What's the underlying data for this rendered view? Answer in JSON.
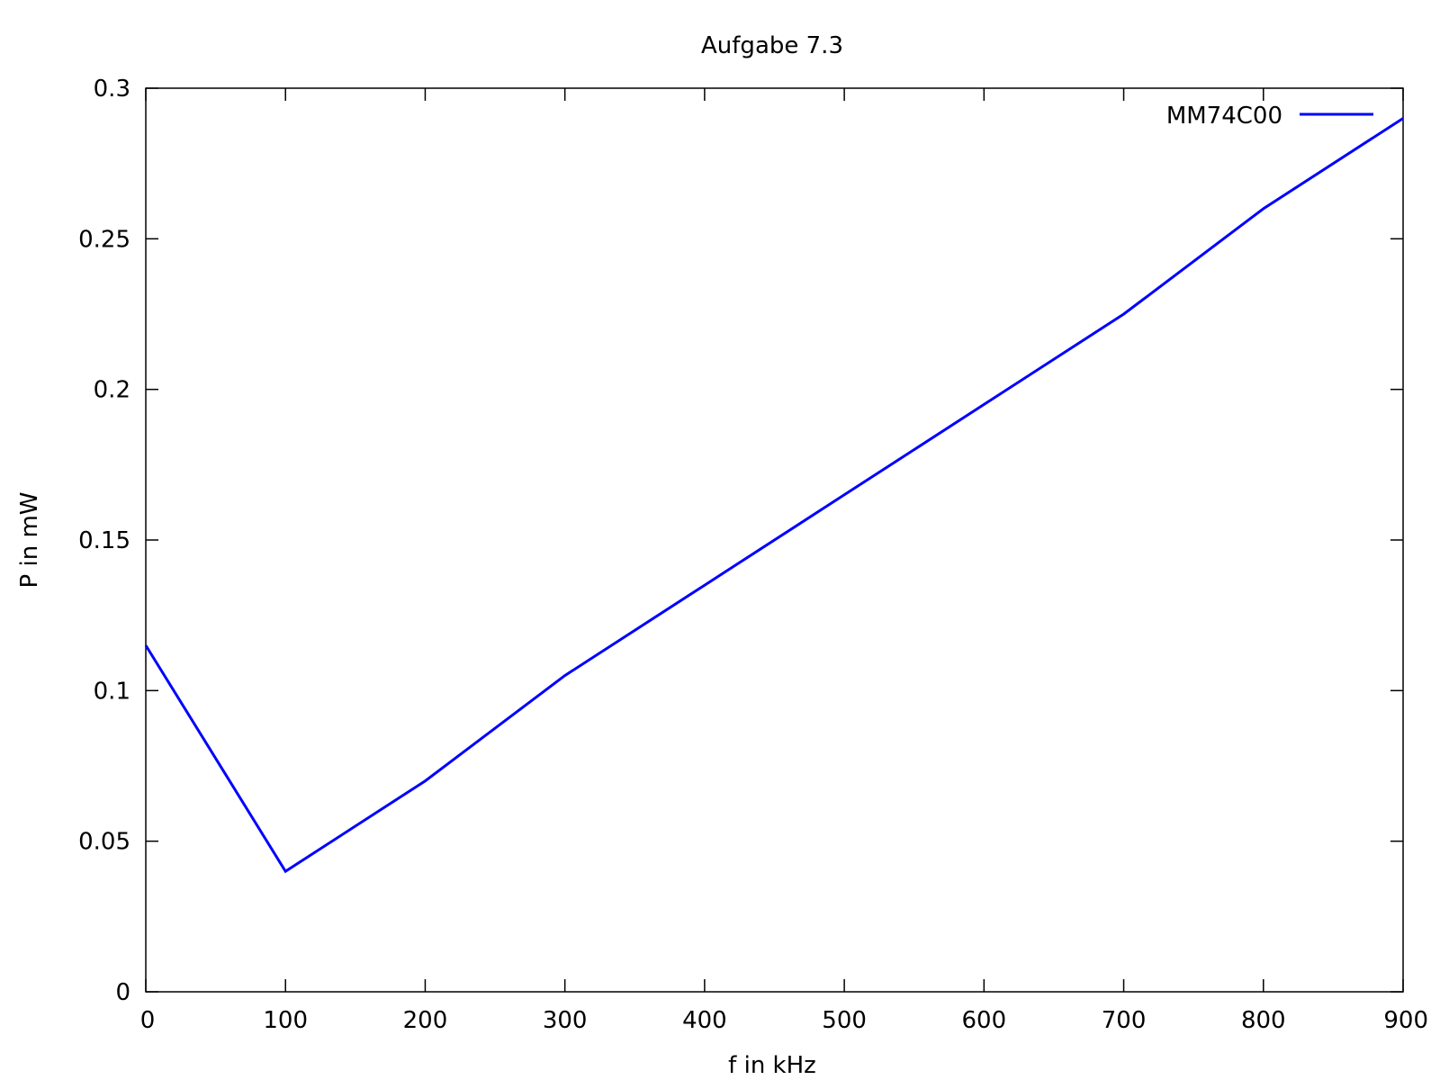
{
  "chart_data": {
    "type": "line",
    "title": "Aufgabe 7.3",
    "xlabel": "f in kHz",
    "ylabel": "P in mW",
    "xlim": [
      0,
      900
    ],
    "ylim": [
      0,
      0.3
    ],
    "xticks": [
      "0",
      "100",
      "200",
      "300",
      "400",
      "500",
      "600",
      "700",
      "800",
      "900"
    ],
    "yticks": [
      "0",
      "0.05",
      "0.1",
      "0.15",
      "0.2",
      "0.25",
      "0.3"
    ],
    "grid": false,
    "legend_position": "top-right",
    "series": [
      {
        "name": "MM74C00",
        "color": "#0000ff",
        "x": [
          0,
          100,
          200,
          300,
          400,
          500,
          600,
          700,
          800,
          900
        ],
        "y": [
          0.115,
          0.04,
          0.07,
          0.105,
          0.135,
          0.165,
          0.195,
          0.225,
          0.26,
          0.29
        ]
      }
    ]
  }
}
